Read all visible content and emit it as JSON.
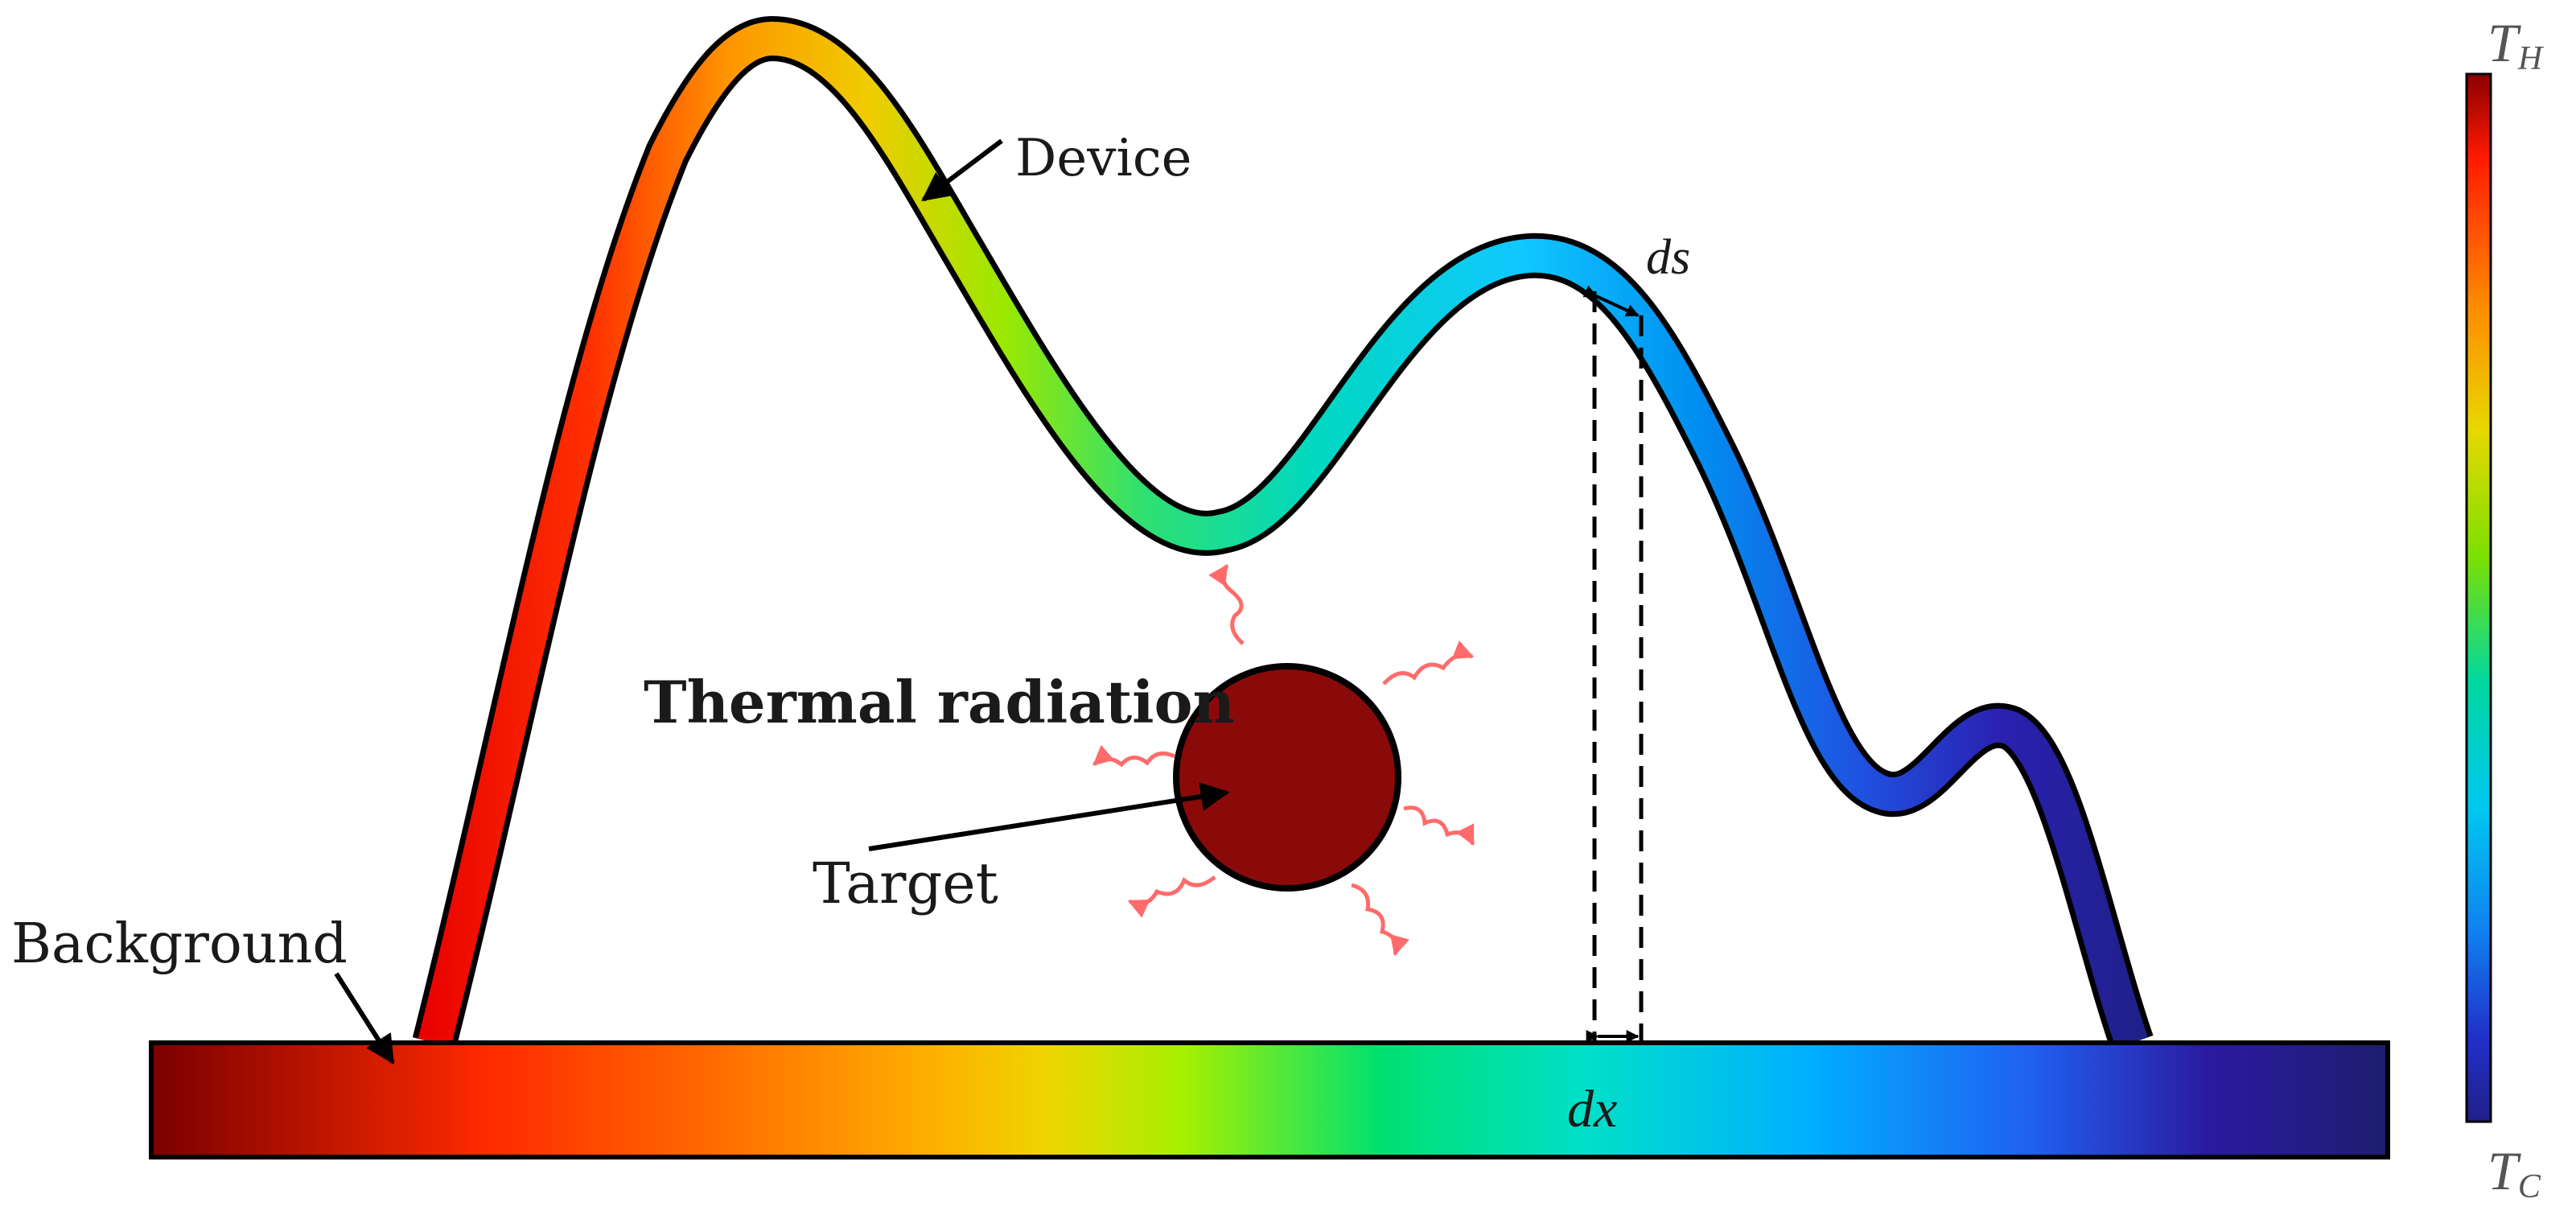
{
  "labels": {
    "device": "Device",
    "ds": "ds",
    "thermal_radiation": "Thermal radiation",
    "target": "Target",
    "background": "Background",
    "dx": "dx",
    "th": "T",
    "th_sub": "H",
    "tc": "T",
    "tc_sub": "C"
  },
  "colors": {
    "gradient": [
      "#7a0000",
      "#ff2a00",
      "#ff9a00",
      "#f0d400",
      "#a8f000",
      "#00e070",
      "#00e0c8",
      "#00b0ff",
      "#2060f0",
      "#2a1aa0",
      "#1e1e6e"
    ],
    "target_fill": "#8a0a0a",
    "radiation": "#ff6b6b",
    "outline": "#000000"
  }
}
